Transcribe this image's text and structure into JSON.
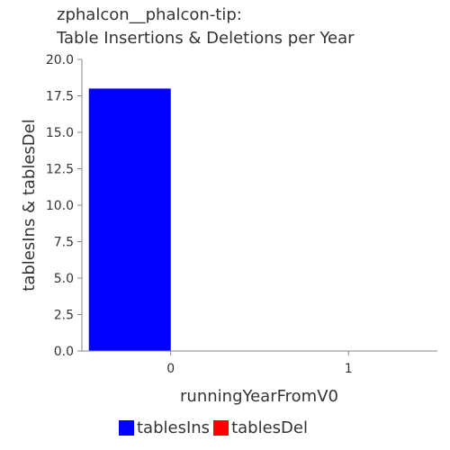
{
  "title_line1": "zphalcon__phalcon-tip:",
  "title_line2": "Table Insertions & Deletions per Year",
  "chart_data": {
    "type": "bar",
    "title": "zphalcon__phalcon-tip: Table Insertions & Deletions per Year",
    "xlabel": "runningYearFromV0",
    "ylabel": "tablesIns & tablesDel",
    "categories": [
      "0",
      "1"
    ],
    "series": [
      {
        "name": "tablesIns",
        "color": "#0000ff",
        "values": [
          18,
          0
        ]
      },
      {
        "name": "tablesDel",
        "color": "#ff0000",
        "values": [
          0,
          0
        ]
      }
    ],
    "ylim": [
      0,
      20
    ],
    "yticks": [
      "0.0",
      "2.5",
      "5.0",
      "7.5",
      "10.0",
      "12.5",
      "15.0",
      "17.5",
      "20.0"
    ],
    "grid": false,
    "legend_position": "bottom"
  }
}
